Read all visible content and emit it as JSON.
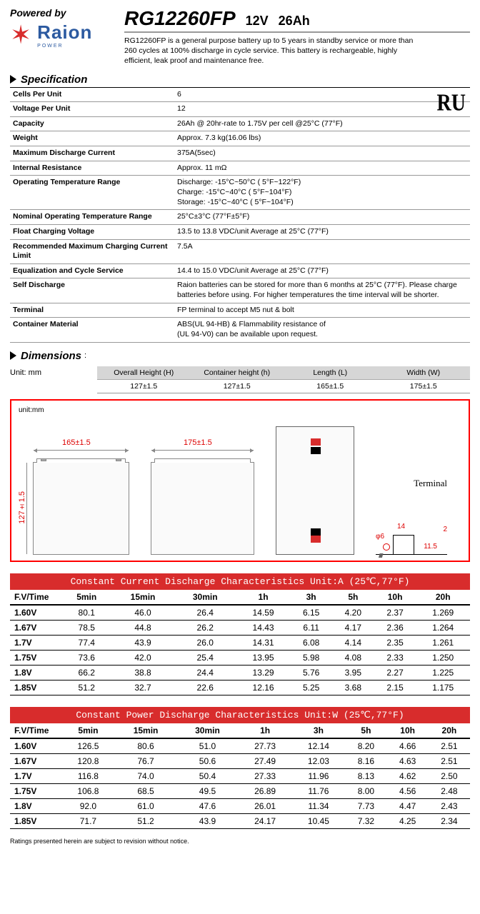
{
  "header": {
    "powered_by": "Powered by",
    "logo_text": "Raion",
    "logo_sub": "POWER",
    "model": "RG12260FP",
    "rating_v": "12V",
    "rating_ah": "26Ah",
    "description": "RG12260FP is a general purpose battery up to 5 years in standby service or more than 260 cycles at 100% discharge in cycle service. This battery is rechargeable, highly efficient, leak proof and maintenance free."
  },
  "spec": {
    "title": "Specification",
    "ru_mark": "RU",
    "rows": [
      {
        "k": "Cells Per Unit",
        "v": "6"
      },
      {
        "k": "Voltage Per Unit",
        "v": "12"
      },
      {
        "k": "Capacity",
        "v": "26Ah @ 20hr-rate to 1.75V per cell @25°C (77°F)"
      },
      {
        "k": "Weight",
        "v": "Approx. 7.3 kg(16.06 lbs)"
      },
      {
        "k": "Maximum Discharge Current",
        "v": "375A(5sec)"
      },
      {
        "k": "Internal Resistance",
        "v": "Approx. 11 mΩ"
      },
      {
        "k": "Operating Temperature Range",
        "v": "Discharge: -15°C~50°C ( 5°F~122°F)\nCharge:  -15°C~40°C ( 5°F~104°F)\nStorage: -15°C~40°C ( 5°F~104°F)"
      },
      {
        "k": "Nominal Operating Temperature Range",
        "v": "25°C±3°C (77°F±5°F)"
      },
      {
        "k": "Float Charging Voltage",
        "v": "13.5 to 13.8 VDC/unit Average at 25°C (77°F)"
      },
      {
        "k": "Recommended Maximum Charging Current Limit",
        "v": "7.5A"
      },
      {
        "k": "Equalization and Cycle Service",
        "v": "14.4 to 15.0 VDC/unit Average at  25°C (77°F)"
      },
      {
        "k": "Self Discharge",
        "v": "Raion batteries can be stored for more than 6 months at 25°C (77°F). Please charge batteries before using. For higher temperatures the time interval will be shorter."
      },
      {
        "k": "Terminal",
        "v": "FP terminal to accept M5 nut & bolt"
      },
      {
        "k": "Container Material",
        "v": "ABS(UL 94-HB)  &  Flammability resistance of\n(UL 94-V0) can be available upon request."
      }
    ]
  },
  "dims": {
    "title": "Dimensions",
    "sub": ":",
    "unit": "Unit: mm",
    "cols": [
      "Overall Height (H)",
      "Container height (h)",
      "Length (L)",
      "Width (W)"
    ],
    "vals": [
      "127±1.5",
      "127±1.5",
      "165±1.5",
      "175±1.5"
    ]
  },
  "diagram": {
    "unit": "unit:mm",
    "len": "165±1.5",
    "wid": "175±1.5",
    "hgt": "127±1.5",
    "terminal": "Terminal",
    "t14": "14",
    "t2": "2",
    "t6": "φ6",
    "t115": "11.5"
  },
  "current_table": {
    "title": "Constant Current Discharge Characteristics   Unit:A (25℃,77°F)",
    "columns": [
      "F.V/Time",
      "5min",
      "15min",
      "30min",
      "1h",
      "3h",
      "5h",
      "10h",
      "20h"
    ],
    "rows": [
      [
        "1.60V",
        "80.1",
        "46.0",
        "26.4",
        "14.59",
        "6.15",
        "4.20",
        "2.37",
        "1.269"
      ],
      [
        "1.67V",
        "78.5",
        "44.8",
        "26.2",
        "14.43",
        "6.11",
        "4.17",
        "2.36",
        "1.264"
      ],
      [
        "1.7V",
        "77.4",
        "43.9",
        "26.0",
        "14.31",
        "6.08",
        "4.14",
        "2.35",
        "1.261"
      ],
      [
        "1.75V",
        "73.6",
        "42.0",
        "25.4",
        "13.95",
        "5.98",
        "4.08",
        "2.33",
        "1.250"
      ],
      [
        "1.8V",
        "66.2",
        "38.8",
        "24.4",
        "13.29",
        "5.76",
        "3.95",
        "2.27",
        "1.225"
      ],
      [
        "1.85V",
        "51.2",
        "32.7",
        "22.6",
        "12.16",
        "5.25",
        "3.68",
        "2.15",
        "1.175"
      ]
    ]
  },
  "power_table": {
    "title": "Constant Power Discharge Characteristics   Unit:W (25℃,77°F)",
    "columns": [
      "F.V/Time",
      "5min",
      "15min",
      "30min",
      "1h",
      "3h",
      "5h",
      "10h",
      "20h"
    ],
    "rows": [
      [
        "1.60V",
        "126.5",
        "80.6",
        "51.0",
        "27.73",
        "12.14",
        "8.20",
        "4.66",
        "2.51"
      ],
      [
        "1.67V",
        "120.8",
        "76.7",
        "50.6",
        "27.49",
        "12.03",
        "8.16",
        "4.63",
        "2.51"
      ],
      [
        "1.7V",
        "116.8",
        "74.0",
        "50.4",
        "27.33",
        "11.96",
        "8.13",
        "4.62",
        "2.50"
      ],
      [
        "1.75V",
        "106.8",
        "68.5",
        "49.5",
        "26.89",
        "11.76",
        "8.00",
        "4.56",
        "2.48"
      ],
      [
        "1.8V",
        "92.0",
        "61.0",
        "47.6",
        "26.01",
        "11.34",
        "7.73",
        "4.47",
        "2.43"
      ],
      [
        "1.85V",
        "71.7",
        "51.2",
        "43.9",
        "24.17",
        "10.45",
        "7.32",
        "4.25",
        "2.34"
      ]
    ]
  },
  "footnote": "Ratings presented herein are subject to revision without notice.",
  "colors": {
    "accent_red": "#d82c2c",
    "logo_blue": "#2c5aa0",
    "border_red": "#f00",
    "grid_grey": "#d6d6d6"
  }
}
